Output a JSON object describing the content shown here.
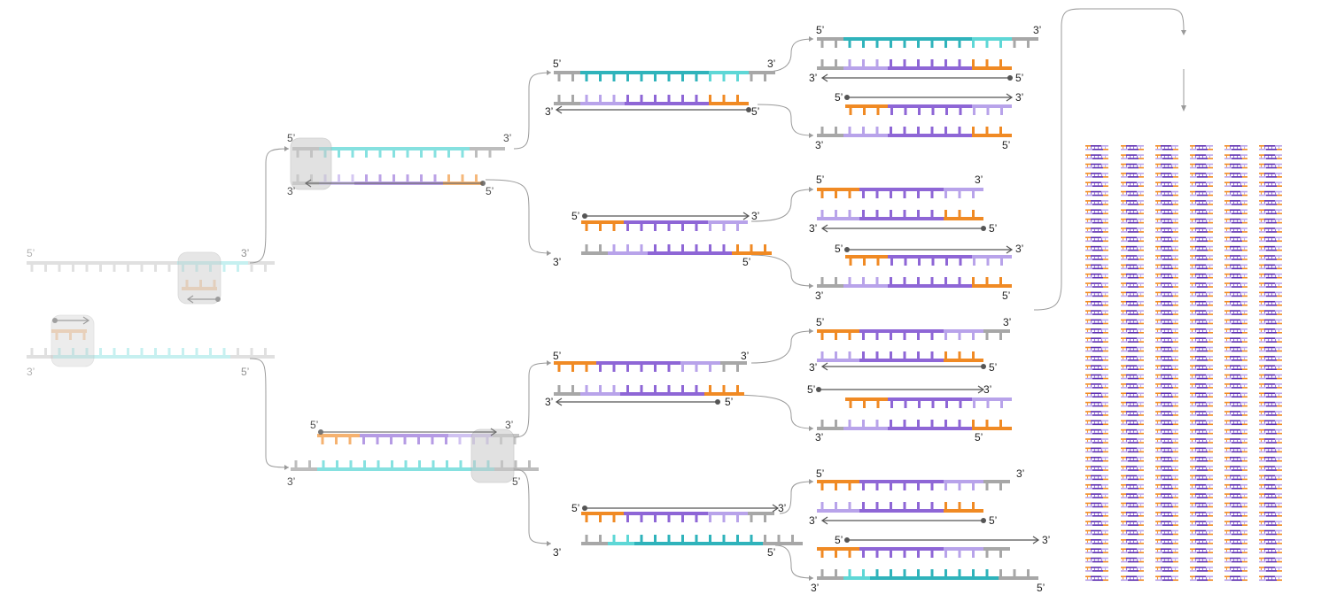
{
  "labels": {
    "five_prime": "5’",
    "three_prime": "3’"
  },
  "colors": {
    "background": "#ffffff",
    "backbone_gray": "#a7a7a7",
    "tooth_gray": "#9a9a9a",
    "teal": "#5ed7d6",
    "teal_dark": "#2fb3bb",
    "lavender": "#b8a3ea",
    "purple": "#8e66d6",
    "purple_dark": "#5e2fb0",
    "orange": "#f08a24",
    "arrow": "#555555",
    "connector": "#9a9a9a",
    "enzyme_bubble": "#c9c9c9"
  },
  "legend": {
    "icons": [
      "enzyme-bubble",
      "primer-arrow",
      "connector-arrow"
    ]
  },
  "mosaic": {
    "columns": 6,
    "rows": 48
  }
}
